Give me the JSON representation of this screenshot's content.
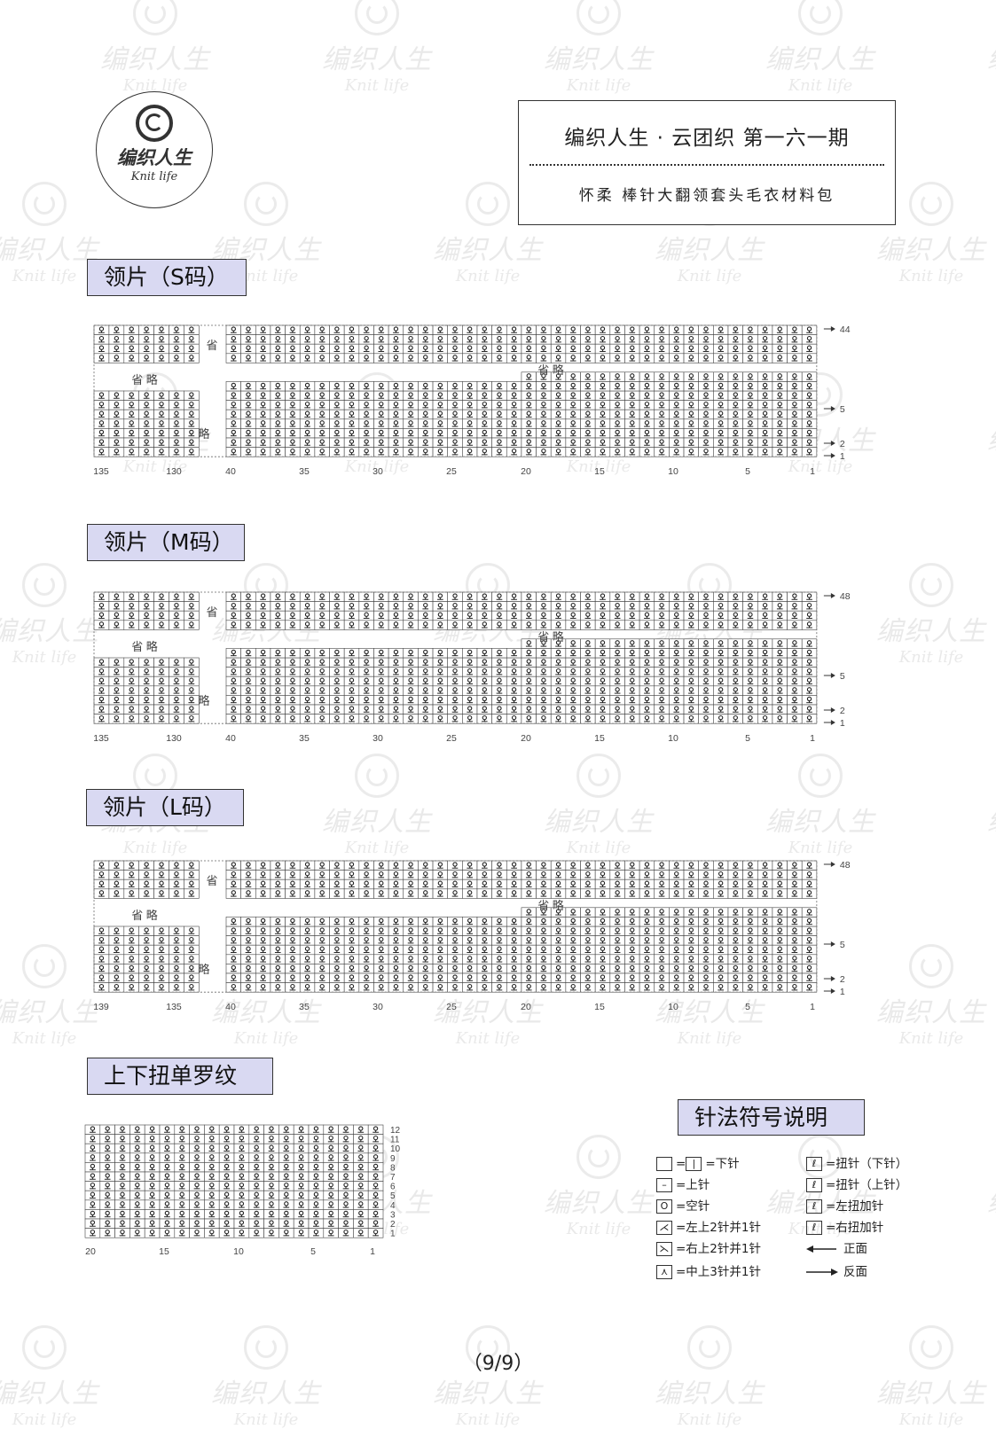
{
  "watermark": {
    "cn": "编织人生",
    "en": "Knit life"
  },
  "logo": {
    "cn": "编织人生",
    "en": "Knit life"
  },
  "header": {
    "title": "编织人生 · 云团织   第一六一期",
    "subtitle": "怀柔   棒针大翻领套头毛衣材料包"
  },
  "sections": {
    "s": "领片（S码）",
    "m": "领片（M码）",
    "l": "领片（L码）",
    "rib": "上下扭单罗纹",
    "legend": "针法符号说明"
  },
  "omit": {
    "top": "省",
    "mid": "省 略",
    "bottom": "略"
  },
  "charts": [
    {
      "x_labels": [
        "135",
        "130",
        "40",
        "35",
        "30",
        "25",
        "20",
        "15",
        "10",
        "5",
        "1"
      ],
      "row_labels": [
        "44",
        "5",
        "2",
        "1"
      ]
    },
    {
      "x_labels": [
        "135",
        "130",
        "40",
        "35",
        "30",
        "25",
        "20",
        "15",
        "10",
        "5",
        "1"
      ],
      "row_labels": [
        "48",
        "5",
        "2",
        "1"
      ]
    },
    {
      "x_labels": [
        "139",
        "135",
        "40",
        "35",
        "30",
        "25",
        "20",
        "15",
        "10",
        "5",
        "1"
      ],
      "row_labels": [
        "48",
        "5",
        "2",
        "1"
      ]
    }
  ],
  "rib_chart": {
    "x_labels": [
      "20",
      "15",
      "10",
      "5",
      "1"
    ],
    "row_labels": [
      "12",
      "11",
      "10",
      "9",
      "8",
      "7",
      "6",
      "5",
      "4",
      "3",
      "2",
      "1"
    ]
  },
  "legend": {
    "knit": "=下针",
    "purl": "=上针",
    "yo": "=空针",
    "k2tog_left": "=左上2针并1针",
    "k2tog_right": "=右上2针并1针",
    "cdd": "=中上3针并1针",
    "twist_knit": "=扭针（下针）",
    "twist_purl": "=扭针（上针）",
    "left_twist_inc": "=左扭加针",
    "right_twist_inc": "=右扭加针",
    "front": "正面",
    "back": "反面",
    "eq": "="
  },
  "page_number": "（9/9）"
}
